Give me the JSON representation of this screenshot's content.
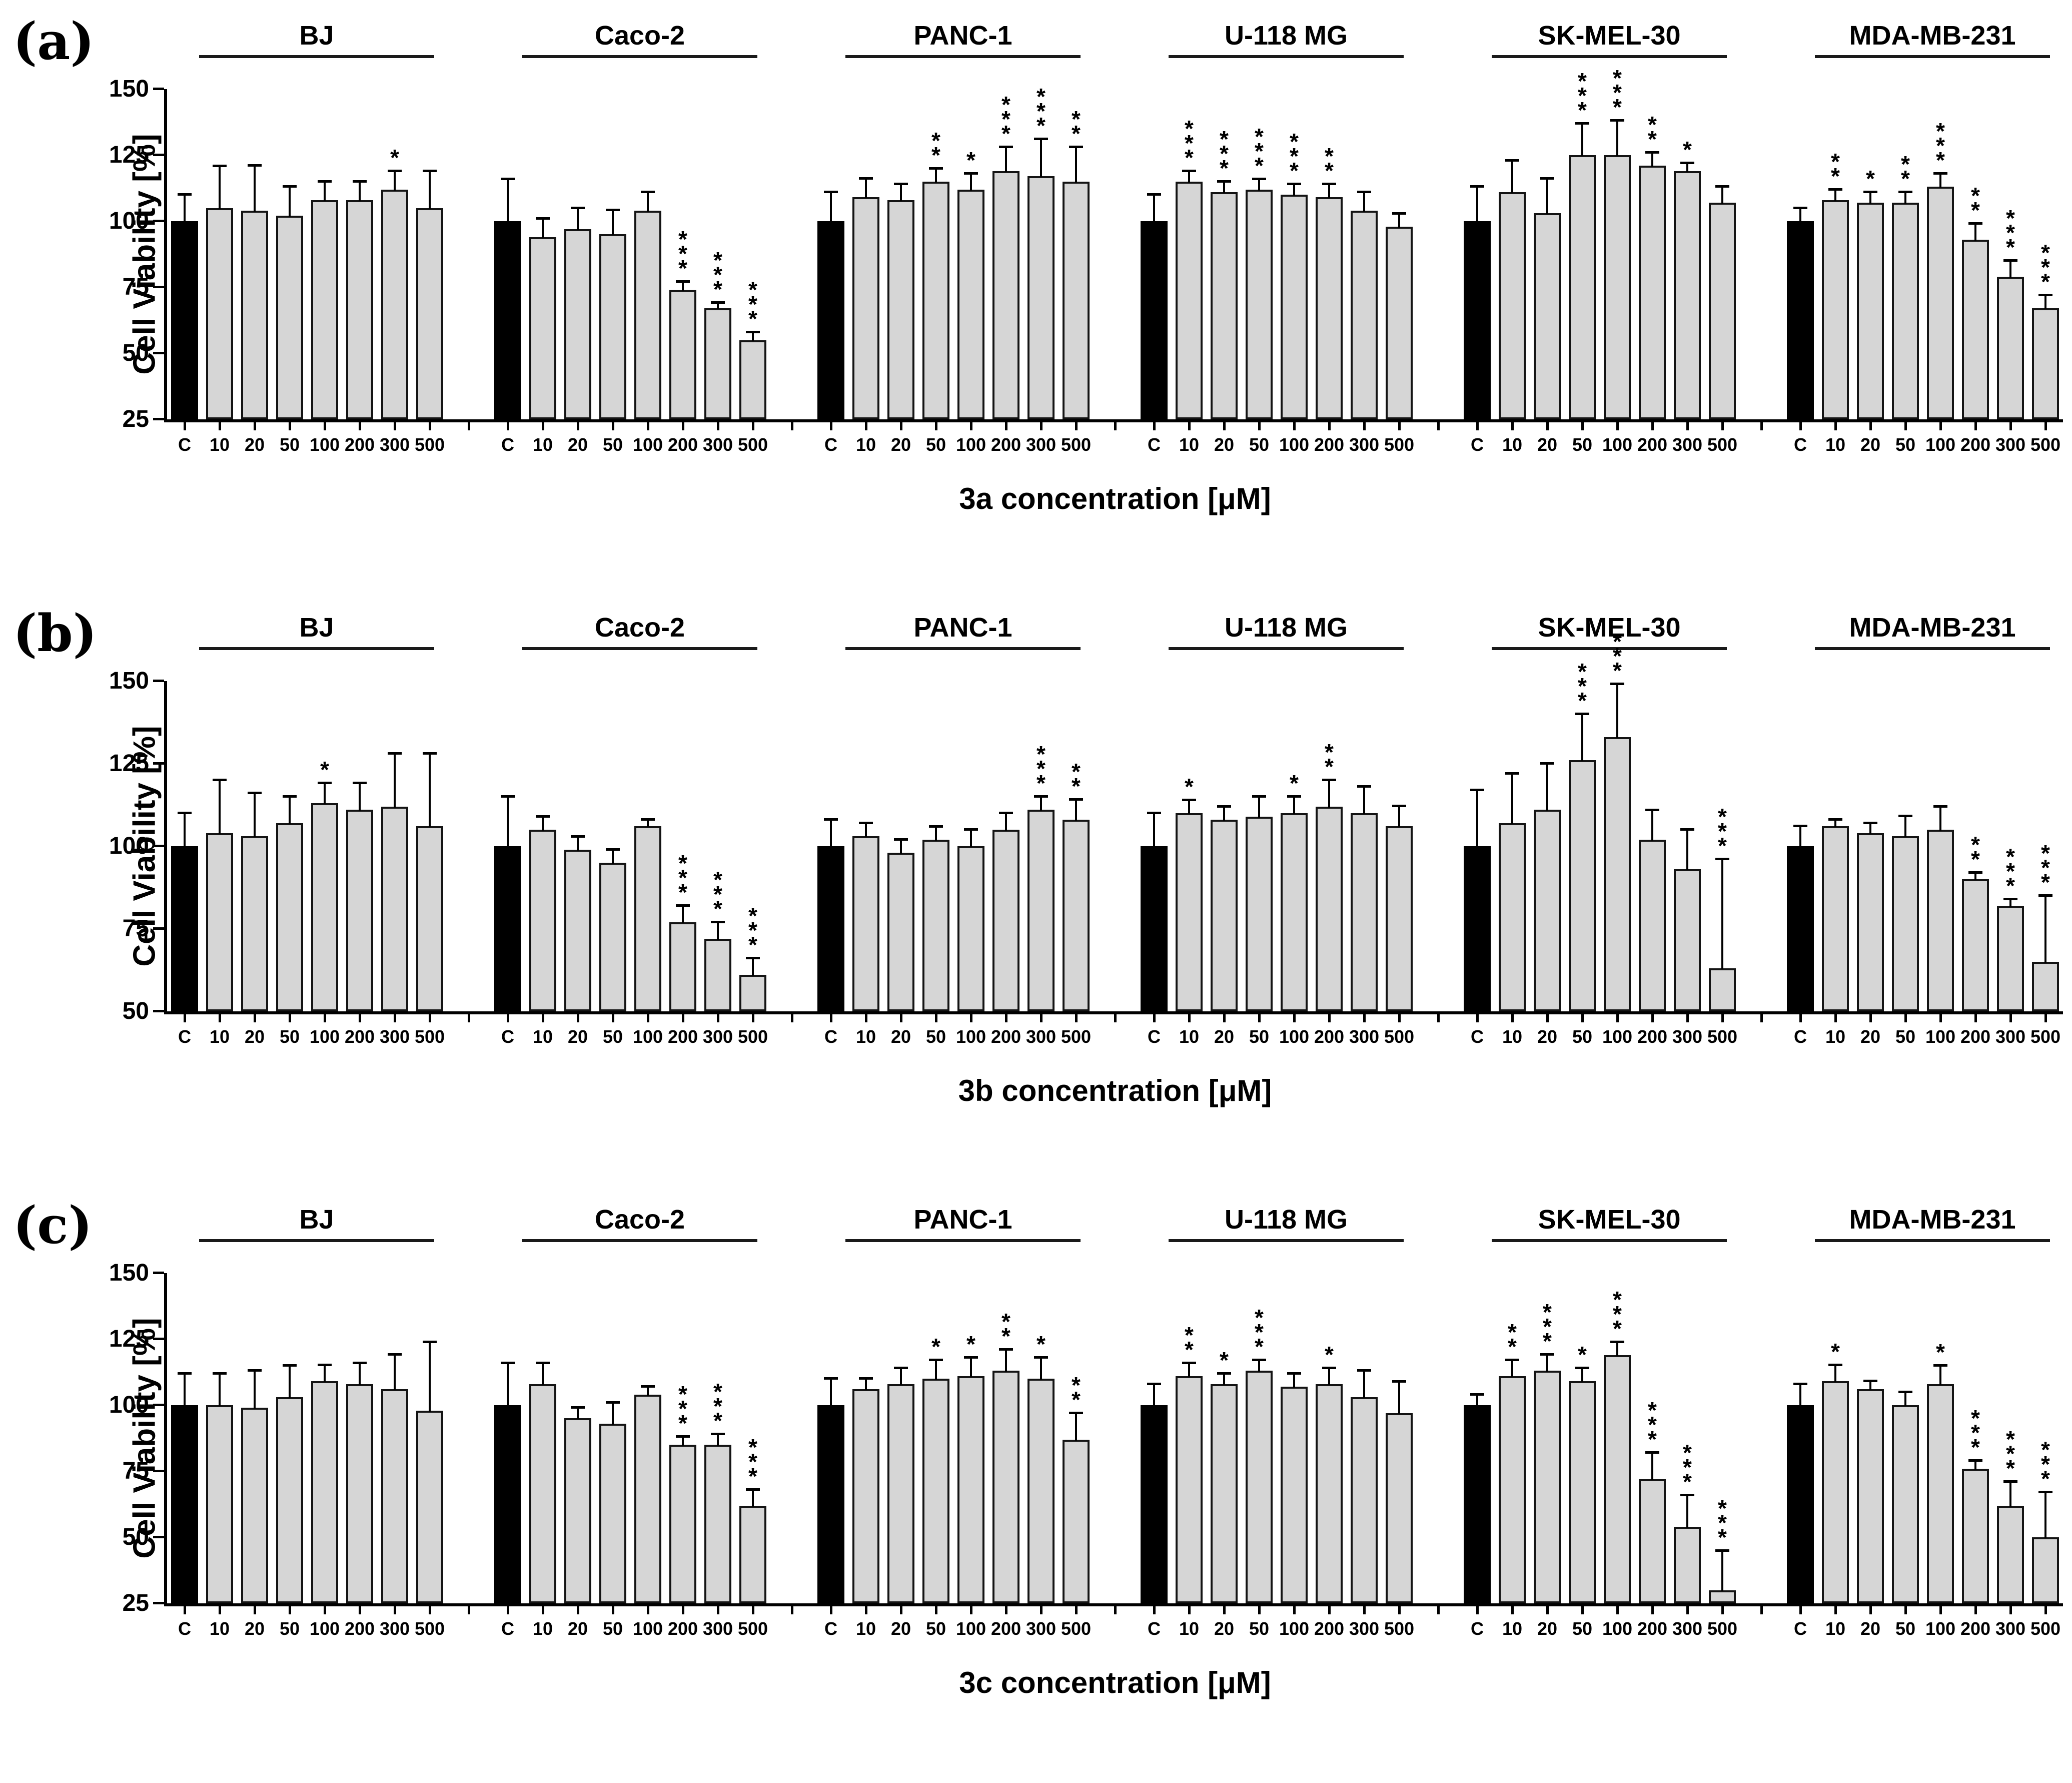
{
  "figure": {
    "ylabel": "Cell Viability [%]",
    "concentrations": [
      "C",
      "10",
      "20",
      "50",
      "100",
      "200",
      "300",
      "500"
    ],
    "cell_lines": [
      "BJ",
      "Caco-2",
      "PANC-1",
      "U-118 MG",
      "SK-MEL-30",
      "MDA-MB-231"
    ],
    "colors": {
      "control_bar": "#000000",
      "treatment_bar": "#d6d6d6",
      "outline": "#141414",
      "background": "#ffffff"
    }
  },
  "chart_data": [
    {
      "type": "bar",
      "panel": "(a)",
      "title": "",
      "xlabel": "3a concentration [μM]",
      "ylabel": "Cell Viability [%]",
      "ylim": [
        25,
        150
      ],
      "yticks": [
        25,
        50,
        75,
        100,
        125,
        150
      ],
      "grid": false,
      "legend": "none",
      "categories": [
        "C",
        "10",
        "20",
        "50",
        "100",
        "200",
        "300",
        "500"
      ],
      "series": [
        {
          "name": "BJ",
          "values": [
            100,
            105,
            104,
            102,
            108,
            108,
            112,
            105
          ],
          "errors": [
            10,
            16,
            17,
            11,
            7,
            7,
            7,
            14
          ],
          "sig": [
            "",
            "",
            "",
            "",
            "",
            "",
            "*",
            ""
          ]
        },
        {
          "name": "Caco-2",
          "values": [
            100,
            94,
            97,
            95,
            104,
            74,
            67,
            55
          ],
          "errors": [
            16,
            7,
            8,
            9,
            7,
            3,
            2,
            3
          ],
          "sig": [
            "",
            "",
            "",
            "",
            "",
            "***",
            "***",
            "***"
          ]
        },
        {
          "name": "PANC-1",
          "values": [
            100,
            109,
            108,
            115,
            112,
            119,
            117,
            115
          ],
          "errors": [
            11,
            7,
            6,
            5,
            6,
            9,
            14,
            13
          ],
          "sig": [
            "",
            "",
            "",
            "**",
            "*",
            "***",
            "***",
            "**"
          ]
        },
        {
          "name": "U-118 MG",
          "values": [
            100,
            115,
            111,
            112,
            110,
            109,
            104,
            98
          ],
          "errors": [
            10,
            4,
            4,
            4,
            4,
            5,
            7,
            5
          ],
          "sig": [
            "",
            "***",
            "***",
            "***",
            "***",
            "**",
            "",
            ""
          ]
        },
        {
          "name": "SK-MEL-30",
          "values": [
            100,
            111,
            103,
            125,
            125,
            121,
            119,
            107
          ],
          "errors": [
            13,
            12,
            13,
            12,
            13,
            5,
            3,
            6
          ],
          "sig": [
            "",
            "",
            "",
            "***",
            "***",
            "**",
            "*",
            ""
          ]
        },
        {
          "name": "MDA-MB-231",
          "values": [
            100,
            108,
            107,
            107,
            113,
            93,
            79,
            67
          ],
          "errors": [
            5,
            4,
            4,
            4,
            5,
            6,
            6,
            5
          ],
          "sig": [
            "",
            "**",
            "*",
            "**",
            "***",
            "**",
            "***",
            "***"
          ]
        }
      ]
    },
    {
      "type": "bar",
      "panel": "(b)",
      "title": "",
      "xlabel": "3b concentration [μM]",
      "ylabel": "Cell Viability [%]",
      "ylim": [
        50,
        150
      ],
      "yticks": [
        50,
        75,
        100,
        125,
        150
      ],
      "grid": false,
      "legend": "none",
      "categories": [
        "C",
        "10",
        "20",
        "50",
        "100",
        "200",
        "300",
        "500"
      ],
      "series": [
        {
          "name": "BJ",
          "values": [
            100,
            104,
            103,
            107,
            113,
            111,
            112,
            106
          ],
          "errors": [
            10,
            16,
            13,
            8,
            6,
            8,
            16,
            22
          ],
          "sig": [
            "",
            "",
            "",
            "",
            "*",
            "",
            "",
            ""
          ]
        },
        {
          "name": "Caco-2",
          "values": [
            100,
            105,
            99,
            95,
            106,
            77,
            72,
            61
          ],
          "errors": [
            15,
            4,
            4,
            4,
            2,
            5,
            5,
            5
          ],
          "sig": [
            "",
            "",
            "",
            "",
            "",
            "***",
            "***",
            "***"
          ]
        },
        {
          "name": "PANC-1",
          "values": [
            100,
            103,
            98,
            102,
            100,
            105,
            111,
            108
          ],
          "errors": [
            8,
            4,
            4,
            4,
            5,
            5,
            4,
            6
          ],
          "sig": [
            "",
            "",
            "",
            "",
            "",
            "",
            "***",
            "**"
          ]
        },
        {
          "name": "U-118 MG",
          "values": [
            100,
            110,
            108,
            109,
            110,
            112,
            110,
            106
          ],
          "errors": [
            10,
            4,
            4,
            6,
            5,
            8,
            8,
            6
          ],
          "sig": [
            "",
            "*",
            "",
            "",
            "*",
            "**",
            "",
            ""
          ]
        },
        {
          "name": "SK-MEL-30",
          "values": [
            100,
            107,
            111,
            126,
            133,
            102,
            93,
            63
          ],
          "errors": [
            17,
            15,
            14,
            14,
            16,
            9,
            12,
            33
          ],
          "sig": [
            "",
            "",
            "",
            "***",
            "***",
            "",
            "",
            "***"
          ]
        },
        {
          "name": "MDA-MB-231",
          "values": [
            100,
            106,
            104,
            103,
            105,
            90,
            82,
            65
          ],
          "errors": [
            6,
            2,
            3,
            6,
            7,
            2,
            2,
            20
          ],
          "sig": [
            "",
            "",
            "",
            "",
            "",
            "**",
            "***",
            "***"
          ]
        }
      ]
    },
    {
      "type": "bar",
      "panel": "(c)",
      "title": "",
      "xlabel": "3c concentration [μM]",
      "ylabel": "Cell Viability [%]",
      "ylim": [
        25,
        150
      ],
      "yticks": [
        25,
        50,
        75,
        100,
        125,
        150
      ],
      "grid": false,
      "legend": "none",
      "categories": [
        "C",
        "10",
        "20",
        "50",
        "100",
        "200",
        "300",
        "500"
      ],
      "series": [
        {
          "name": "BJ",
          "values": [
            100,
            100,
            99,
            103,
            109,
            108,
            106,
            98
          ],
          "errors": [
            12,
            12,
            14,
            12,
            6,
            8,
            13,
            26
          ],
          "sig": [
            "",
            "",
            "",
            "",
            "",
            "",
            "",
            ""
          ]
        },
        {
          "name": "Caco-2",
          "values": [
            100,
            108,
            95,
            93,
            104,
            85,
            85,
            62
          ],
          "errors": [
            16,
            8,
            4,
            8,
            3,
            3,
            4,
            6
          ],
          "sig": [
            "",
            "",
            "",
            "",
            "",
            "***",
            "***",
            "***"
          ]
        },
        {
          "name": "PANC-1",
          "values": [
            100,
            106,
            108,
            110,
            111,
            113,
            110,
            87
          ],
          "errors": [
            10,
            4,
            6,
            7,
            7,
            8,
            8,
            10
          ],
          "sig": [
            "",
            "",
            "",
            "*",
            "*",
            "**",
            "*",
            "**"
          ]
        },
        {
          "name": "U-118 MG",
          "values": [
            100,
            111,
            108,
            113,
            107,
            108,
            103,
            97
          ],
          "errors": [
            8,
            5,
            4,
            4,
            5,
            6,
            10,
            12
          ],
          "sig": [
            "",
            "**",
            "*",
            "***",
            "",
            "*",
            "",
            ""
          ]
        },
        {
          "name": "SK-MEL-30",
          "values": [
            100,
            111,
            113,
            109,
            119,
            72,
            54,
            30
          ],
          "errors": [
            4,
            6,
            6,
            5,
            5,
            10,
            12,
            15
          ],
          "sig": [
            "",
            "**",
            "***",
            "*",
            "***",
            "***",
            "***",
            "***"
          ]
        },
        {
          "name": "MDA-MB-231",
          "values": [
            100,
            109,
            106,
            100,
            108,
            76,
            62,
            50
          ],
          "errors": [
            8,
            6,
            3,
            5,
            7,
            3,
            9,
            17
          ],
          "sig": [
            "",
            "*",
            "",
            "",
            "*",
            "***",
            "***",
            "***"
          ]
        }
      ]
    }
  ]
}
